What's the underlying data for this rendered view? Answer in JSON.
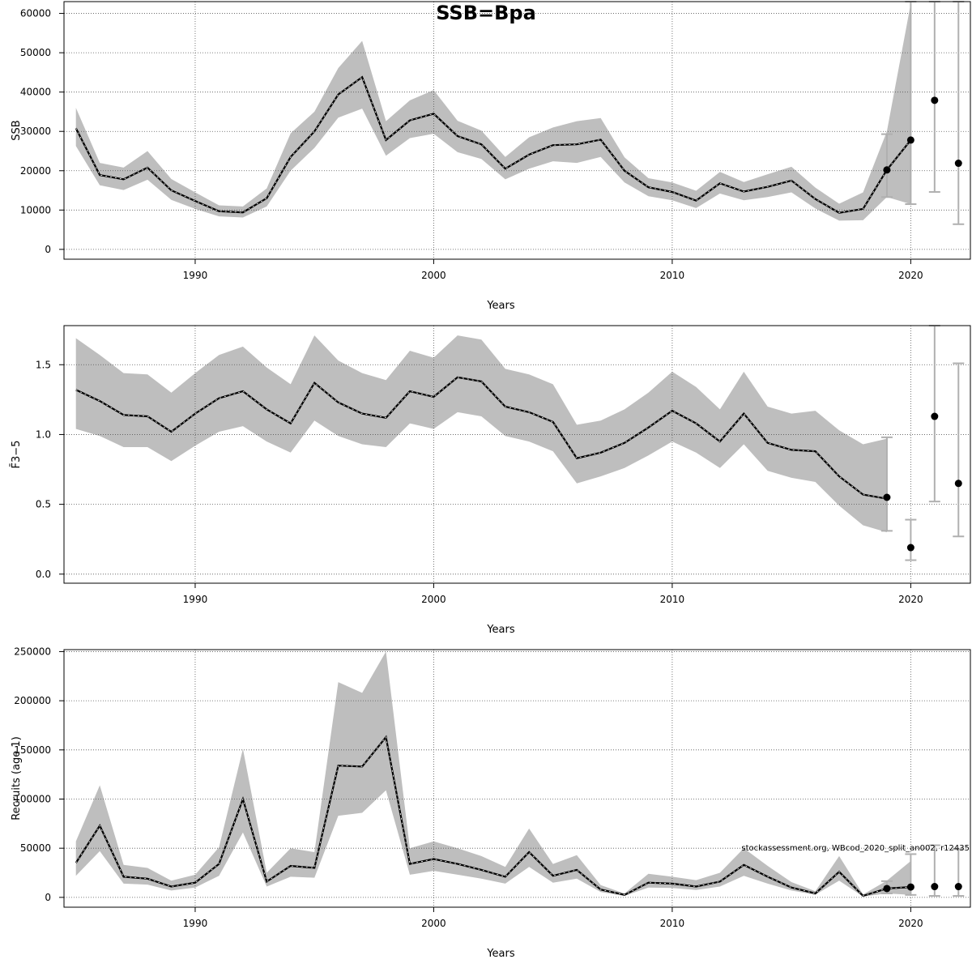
{
  "title": "SSB=Bpa",
  "footnote": "stockassessment.org, WBcod_2020_split_an002, r12435",
  "colors": {
    "band": "#bebebe",
    "line": "#000000",
    "grid": "#555555",
    "errorbar": "#b0b0b0",
    "point": "#000000"
  },
  "chart_data": [
    {
      "type": "line",
      "panel": "ssb",
      "xlabel": "Years",
      "ylabel": "SSB",
      "xlim": [
        1984.5,
        2022.5
      ],
      "ylim": [
        -2500,
        63000
      ],
      "xticks": [
        1990,
        2000,
        2010,
        2020
      ],
      "yticks": [
        0,
        10000,
        20000,
        30000,
        40000,
        50000,
        60000
      ],
      "grid": true,
      "x": [
        1985,
        1986,
        1987,
        1988,
        1989,
        1990,
        1991,
        1992,
        1993,
        1994,
        1995,
        1996,
        1997,
        1998,
        1999,
        2000,
        2001,
        2002,
        2003,
        2004,
        2005,
        2006,
        2007,
        2008,
        2009,
        2010,
        2011,
        2012,
        2013,
        2014,
        2015,
        2016,
        2017,
        2018,
        2019,
        2020
      ],
      "estimate": [
        30800,
        18900,
        17800,
        20800,
        15000,
        12300,
        9700,
        9400,
        13000,
        23500,
        30000,
        39400,
        43800,
        27800,
        32800,
        34500,
        28800,
        26700,
        20500,
        24100,
        26500,
        26700,
        27900,
        20000,
        15800,
        14600,
        12400,
        16800,
        14700,
        15900,
        17500,
        12800,
        9300,
        10300,
        20200,
        27800
      ],
      "lower": [
        26300,
        16300,
        15100,
        17700,
        12600,
        10300,
        8400,
        8100,
        10900,
        20000,
        25800,
        33500,
        35800,
        23800,
        28300,
        29400,
        24700,
        23000,
        17800,
        20500,
        22400,
        22000,
        23500,
        17000,
        13500,
        12500,
        10500,
        14200,
        12500,
        13300,
        14500,
        10400,
        7300,
        7400,
        13300,
        11500
      ],
      "upper": [
        36000,
        22000,
        20800,
        25000,
        17900,
        14500,
        11200,
        10900,
        15500,
        29500,
        35000,
        46100,
        53000,
        32600,
        37900,
        40500,
        32700,
        30200,
        23500,
        28500,
        31000,
        32600,
        33400,
        23400,
        18100,
        17000,
        14900,
        19700,
        17100,
        19100,
        21000,
        15700,
        11600,
        14500,
        30000,
        62500
      ],
      "points": [
        {
          "x": 2019,
          "y": 20200,
          "lo": 13300,
          "hi": 29300
        },
        {
          "x": 2020,
          "y": 27800,
          "lo": 11500,
          "hi": 63000
        },
        {
          "x": 2021,
          "y": 37900,
          "lo": 14600,
          "hi": 63000
        },
        {
          "x": 2022,
          "y": 21900,
          "lo": 6400,
          "hi": 63000
        }
      ]
    },
    {
      "type": "line",
      "panel": "fbar",
      "xlabel": "Years",
      "ylabel": "F̄3−5",
      "xlim": [
        1984.5,
        2022.5
      ],
      "ylim": [
        -0.065,
        1.78
      ],
      "xticks": [
        1990,
        2000,
        2010,
        2020
      ],
      "yticks": [
        0.0,
        0.5,
        1.0,
        1.5
      ],
      "ytick_labels": [
        "0.0",
        "0.5",
        "1.0",
        "1.5"
      ],
      "grid": true,
      "x": [
        1985,
        1986,
        1987,
        1988,
        1989,
        1990,
        1991,
        1992,
        1993,
        1994,
        1995,
        1996,
        1997,
        1998,
        1999,
        2000,
        2001,
        2002,
        2003,
        2004,
        2005,
        2006,
        2007,
        2008,
        2009,
        2010,
        2011,
        2012,
        2013,
        2014,
        2015,
        2016,
        2017,
        2018,
        2019
      ],
      "estimate": [
        1.32,
        1.24,
        1.14,
        1.13,
        1.02,
        1.15,
        1.26,
        1.31,
        1.18,
        1.08,
        1.37,
        1.23,
        1.15,
        1.12,
        1.31,
        1.27,
        1.41,
        1.38,
        1.2,
        1.16,
        1.09,
        0.83,
        0.87,
        0.94,
        1.05,
        1.17,
        1.08,
        0.95,
        1.15,
        0.94,
        0.89,
        0.88,
        0.7,
        0.57,
        0.54
      ],
      "lower": [
        1.04,
        0.99,
        0.91,
        0.91,
        0.81,
        0.92,
        1.02,
        1.06,
        0.95,
        0.87,
        1.1,
        0.99,
        0.93,
        0.91,
        1.08,
        1.04,
        1.16,
        1.13,
        0.99,
        0.95,
        0.88,
        0.65,
        0.7,
        0.76,
        0.85,
        0.95,
        0.87,
        0.76,
        0.93,
        0.74,
        0.69,
        0.66,
        0.49,
        0.35,
        0.3
      ],
      "upper": [
        1.69,
        1.57,
        1.44,
        1.43,
        1.3,
        1.44,
        1.57,
        1.63,
        1.48,
        1.36,
        1.71,
        1.53,
        1.44,
        1.39,
        1.6,
        1.55,
        1.71,
        1.68,
        1.47,
        1.43,
        1.36,
        1.07,
        1.1,
        1.18,
        1.3,
        1.45,
        1.34,
        1.18,
        1.45,
        1.2,
        1.15,
        1.17,
        1.03,
        0.93,
        0.97
      ],
      "points": [
        {
          "x": 2019,
          "y": 0.55,
          "lo": 0.31,
          "hi": 0.98
        },
        {
          "x": 2020,
          "y": 0.19,
          "lo": 0.1,
          "hi": 0.39
        },
        {
          "x": 2021,
          "y": 1.13,
          "lo": 0.52,
          "hi": 1.78
        },
        {
          "x": 2022,
          "y": 0.65,
          "lo": 0.27,
          "hi": 1.51
        }
      ]
    },
    {
      "type": "line",
      "panel": "recruits",
      "xlabel": "Years",
      "ylabel": "Recruits (age 1)",
      "xlim": [
        1984.5,
        2022.5
      ],
      "ylim": [
        -10000,
        252000
      ],
      "xticks": [
        1990,
        2000,
        2010,
        2020
      ],
      "yticks": [
        0,
        50000,
        100000,
        150000,
        200000,
        250000
      ],
      "grid": true,
      "x": [
        1985,
        1986,
        1987,
        1988,
        1989,
        1990,
        1991,
        1992,
        1993,
        1994,
        1995,
        1996,
        1997,
        1998,
        1999,
        2000,
        2001,
        2002,
        2003,
        2004,
        2005,
        2006,
        2007,
        2008,
        2009,
        2010,
        2011,
        2012,
        2013,
        2014,
        2015,
        2016,
        2017,
        2018,
        2019,
        2020
      ],
      "estimate": [
        35000,
        73000,
        21000,
        19000,
        11000,
        15000,
        34000,
        100000,
        16000,
        32000,
        30000,
        134000,
        133000,
        163000,
        34000,
        39000,
        34000,
        28000,
        21000,
        46000,
        22000,
        28000,
        8000,
        2500,
        15000,
        14000,
        11000,
        16000,
        33000,
        21000,
        10000,
        4000,
        26000,
        1500,
        9000,
        10500
      ],
      "lower": [
        22000,
        47000,
        14000,
        13000,
        7000,
        10000,
        22000,
        66000,
        11000,
        21000,
        20000,
        83000,
        86000,
        109000,
        23000,
        27000,
        23000,
        19000,
        14000,
        31000,
        15000,
        19000,
        5500,
        1500,
        10000,
        9500,
        7500,
        11000,
        22000,
        14000,
        7000,
        2700,
        17000,
        800,
        4000,
        2500
      ],
      "upper": [
        57000,
        114000,
        33000,
        30000,
        17000,
        23000,
        51000,
        151000,
        25000,
        50000,
        46000,
        219000,
        208000,
        250000,
        50000,
        57000,
        50000,
        42000,
        31000,
        70000,
        34000,
        43000,
        12500,
        4000,
        24000,
        21000,
        17500,
        25000,
        50000,
        32000,
        15500,
        6200,
        42000,
        3000,
        17000,
        37000
      ],
      "points": [
        {
          "x": 2019,
          "y": 9000,
          "lo": 4000,
          "hi": 16500
        },
        {
          "x": 2020,
          "y": 10500,
          "lo": 2500,
          "hi": 44000
        },
        {
          "x": 2021,
          "y": 11000,
          "lo": 1500,
          "hi": 53000
        },
        {
          "x": 2022,
          "y": 11000,
          "lo": 1500,
          "hi": 49000
        }
      ]
    }
  ]
}
